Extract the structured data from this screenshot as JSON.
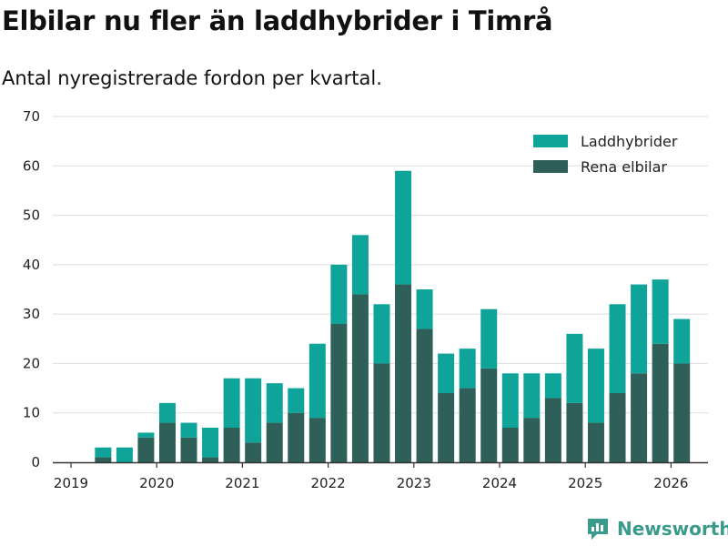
{
  "title": "Elbilar nu fler än laddhybrider i Timrå",
  "subtitle": "Antal nyregistrerade fordon per kvartal.",
  "brand": {
    "name": "Newsworthy"
  },
  "colors": {
    "laddhybrider": "#0fa49a",
    "rena_elbilar": "#2e5f58",
    "grid": "#dddddd",
    "axis": "#333333",
    "brand": "#3a9a8c"
  },
  "chart_data": {
    "type": "bar",
    "stacked": true,
    "categories": [
      "2019 Q2",
      "2019 Q3",
      "2019 Q4",
      "2020 Q1",
      "2020 Q2",
      "2020 Q3",
      "2020 Q4",
      "2021 Q1",
      "2021 Q2",
      "2021 Q3",
      "2021 Q4",
      "2022 Q1",
      "2022 Q2",
      "2022 Q3",
      "2022 Q4",
      "2023 Q1",
      "2023 Q2",
      "2023 Q3",
      "2023 Q4",
      "2024 Q1",
      "2024 Q2",
      "2024 Q3",
      "2024 Q4",
      "2025 Q1",
      "2025 Q2",
      "2025 Q3",
      "2025 Q4",
      "2026 Q1"
    ],
    "series": [
      {
        "name": "Rena elbilar",
        "values": [
          1,
          0,
          5,
          8,
          5,
          1,
          7,
          4,
          8,
          10,
          9,
          28,
          34,
          20,
          36,
          27,
          14,
          15,
          19,
          7,
          9,
          13,
          12,
          8,
          14,
          18,
          24,
          20
        ]
      },
      {
        "name": "Laddhybrider",
        "values": [
          2,
          3,
          1,
          4,
          3,
          6,
          10,
          13,
          8,
          5,
          15,
          12,
          12,
          12,
          23,
          8,
          8,
          8,
          12,
          11,
          9,
          5,
          14,
          15,
          18,
          18,
          13,
          9
        ]
      }
    ],
    "year_ticks": [
      "2019",
      "2020",
      "2021",
      "2022",
      "2023",
      "2024",
      "2025",
      "2026"
    ],
    "y_ticks": [
      "0",
      "10",
      "20",
      "30",
      "40",
      "50",
      "60",
      "70"
    ],
    "ylim": [
      0,
      70
    ],
    "legend": [
      "Laddhybrider",
      "Rena elbilar"
    ],
    "legend_position": "top-right"
  }
}
